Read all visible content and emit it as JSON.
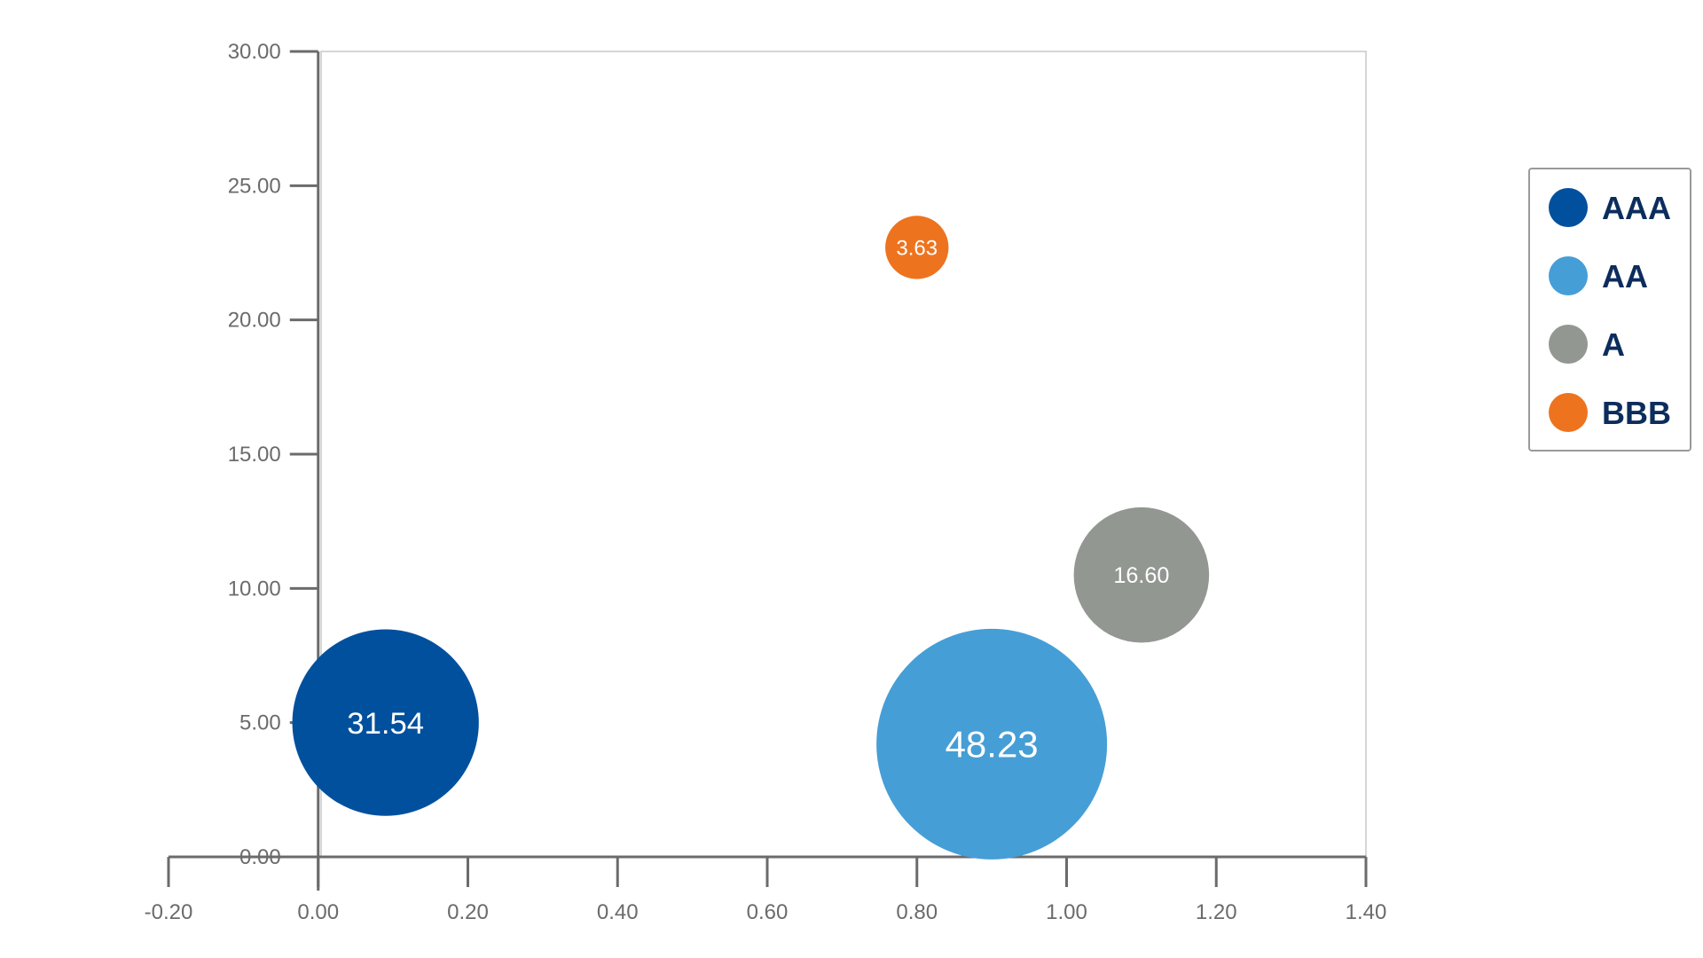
{
  "chart_data": {
    "type": "bubble",
    "x_axis": {
      "min": -0.2,
      "max": 1.4,
      "ticks": [
        -0.2,
        0.0,
        0.2,
        0.4,
        0.6,
        0.8,
        1.0,
        1.2,
        1.4
      ],
      "tick_labels": [
        "-0.20",
        "0.00",
        "0.20",
        "0.40",
        "0.60",
        "0.80",
        "1.00",
        "1.20",
        "1.40"
      ]
    },
    "y_axis": {
      "min": 0,
      "max": 30,
      "ticks": [
        0,
        5,
        10,
        15,
        20,
        25,
        30
      ],
      "tick_labels": [
        "0.00",
        "5.00",
        "10.00",
        "15.00",
        "20.00",
        "25.00",
        "30.00"
      ]
    },
    "series": [
      {
        "name": "AAA",
        "color": "#00509e",
        "x": 0.09,
        "y": 5.0,
        "size": 31.54,
        "label": "31.54"
      },
      {
        "name": "AA",
        "color": "#469ed6",
        "x": 0.9,
        "y": 4.2,
        "size": 48.23,
        "label": "48.23"
      },
      {
        "name": "A",
        "color": "#939792",
        "x": 1.1,
        "y": 10.5,
        "size": 16.6,
        "label": "16.60"
      },
      {
        "name": "BBB",
        "color": "#ee731f",
        "x": 0.8,
        "y": 22.7,
        "size": 3.63,
        "label": "3.63"
      }
    ],
    "legend": {
      "position": "right",
      "entries": [
        "AAA",
        "AA",
        "A",
        "BBB"
      ]
    },
    "grid": false,
    "axis_color": "#6b6b6b",
    "legend_text_color": "#0c2d5c"
  }
}
